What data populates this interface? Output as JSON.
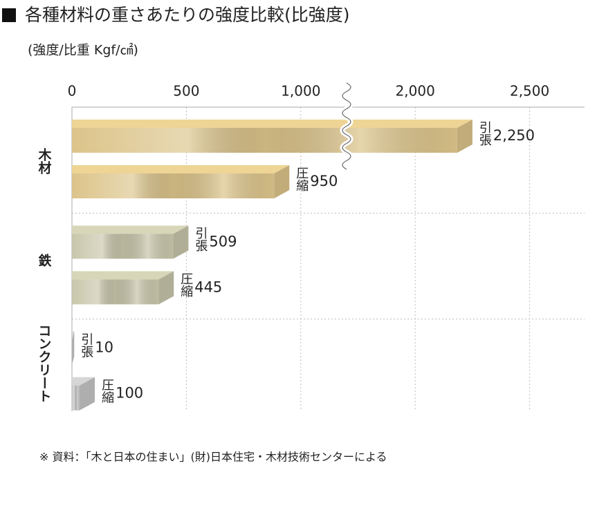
{
  "chart_data": {
    "type": "bar",
    "title": "各種材料の重さあたりの強度比較(比強度)",
    "subtitle": "(強度/比重 Kgf/㎠)",
    "note": "※ 資料：「木と日本の住まい」(財)日本住宅・木材技術センターによる",
    "categories": [
      "木材",
      "鉄",
      "コンクリート"
    ],
    "category_colors": [
      "#dcc48a",
      "#c8c6aa",
      "#c6c6c6"
    ],
    "series": [
      {
        "name": "引張",
        "values": [
          2250,
          509,
          10
        ],
        "value_labels": [
          "2,250",
          "509",
          "10"
        ]
      },
      {
        "name": "圧縮",
        "values": [
          950,
          445,
          100
        ],
        "value_labels": [
          "950",
          "445",
          "100"
        ]
      }
    ],
    "xlim": [
      0,
      2740
    ],
    "axis_break": [
      1200,
      1700
    ],
    "xticks": [
      0,
      500,
      {
        "value": 1000,
        "label": "1,000"
      },
      {
        "value": 2000,
        "label": "2,000"
      },
      {
        "value": 2500,
        "label": "2,500"
      }
    ],
    "grid": true
  }
}
